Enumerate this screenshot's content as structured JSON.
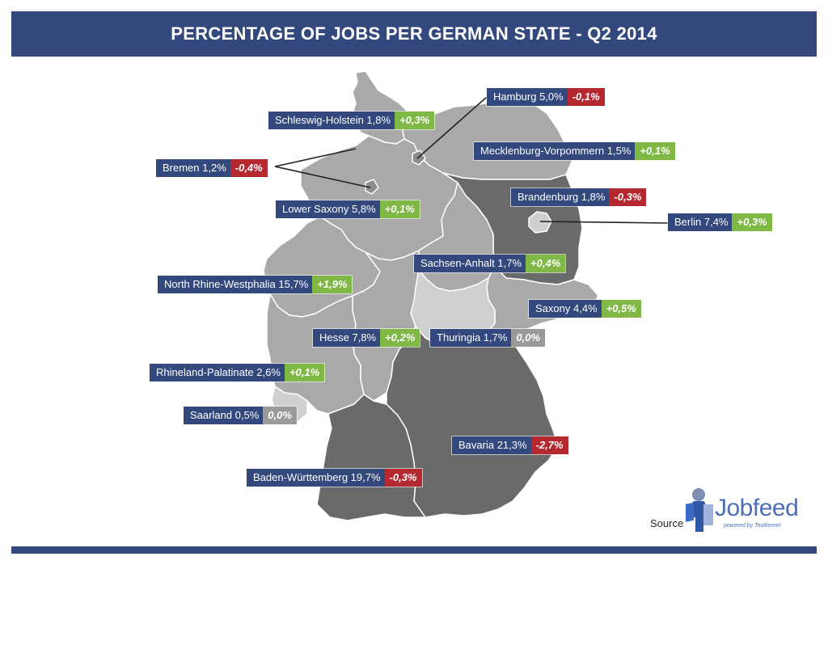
{
  "title": "PERCENTAGE OF JOBS PER GERMAN STATE - Q2 2014",
  "colors": {
    "header": "#33487c",
    "label_name_bg": "#33487c",
    "positive": "#7fb845",
    "negative": "#b5282f",
    "neutral": "#9a9a9a",
    "state_light": "#a9a9a9",
    "state_mid": "#8c8c8c",
    "state_dark": "#6a6a6a",
    "state_lightest": "#cfcfcf"
  },
  "states": [
    {
      "id": "schleswig-holstein",
      "name": "Schleswig-Holstein 1,8%",
      "change": "+0,3%",
      "sign": "pos"
    },
    {
      "id": "hamburg",
      "name": "Hamburg 5,0%",
      "change": "-0,1%",
      "sign": "neg"
    },
    {
      "id": "mecklenburg-vorpommern",
      "name": "Mecklenburg-Vorpommern 1,5%",
      "change": "+0,1%",
      "sign": "pos"
    },
    {
      "id": "bremen",
      "name": "Bremen 1,2%",
      "change": "-0,4%",
      "sign": "neg"
    },
    {
      "id": "brandenburg",
      "name": "Brandenburg 1,8%",
      "change": "-0,3%",
      "sign": "neg"
    },
    {
      "id": "lower-saxony",
      "name": "Lower Saxony 5,8%",
      "change": "+0,1%",
      "sign": "pos"
    },
    {
      "id": "berlin",
      "name": "Berlin 7,4%",
      "change": "+0,3%",
      "sign": "pos"
    },
    {
      "id": "sachsen-anhalt",
      "name": "Sachsen-Anhalt 1,7%",
      "change": "+0,4%",
      "sign": "pos"
    },
    {
      "id": "north-rhine-westphalia",
      "name": "North Rhine-Westphalia 15,7%",
      "change": "+1,9%",
      "sign": "pos"
    },
    {
      "id": "saxony",
      "name": "Saxony 4,4%",
      "change": "+0,5%",
      "sign": "pos"
    },
    {
      "id": "hesse",
      "name": "Hesse 7,8%",
      "change": "+0,2%",
      "sign": "pos"
    },
    {
      "id": "thuringia",
      "name": "Thuringia 1,7%",
      "change": "0,0%",
      "sign": "zero"
    },
    {
      "id": "rhineland-palatinate",
      "name": "Rhineland-Palatinate 2,6%",
      "change": "+0,1%",
      "sign": "pos"
    },
    {
      "id": "saarland",
      "name": "Saarland 0,5%",
      "change": "0,0%",
      "sign": "zero"
    },
    {
      "id": "bavaria",
      "name": "Bavaria 21,3%",
      "change": "-2,7%",
      "sign": "neg"
    },
    {
      "id": "baden-wurttemberg",
      "name": "Baden-Württemberg 19,7%",
      "change": "-0,3%",
      "sign": "neg"
    }
  ],
  "source": {
    "label": "Source",
    "logo_text": "Jobfeed",
    "logo_tagline": "powered by Textkernel"
  }
}
